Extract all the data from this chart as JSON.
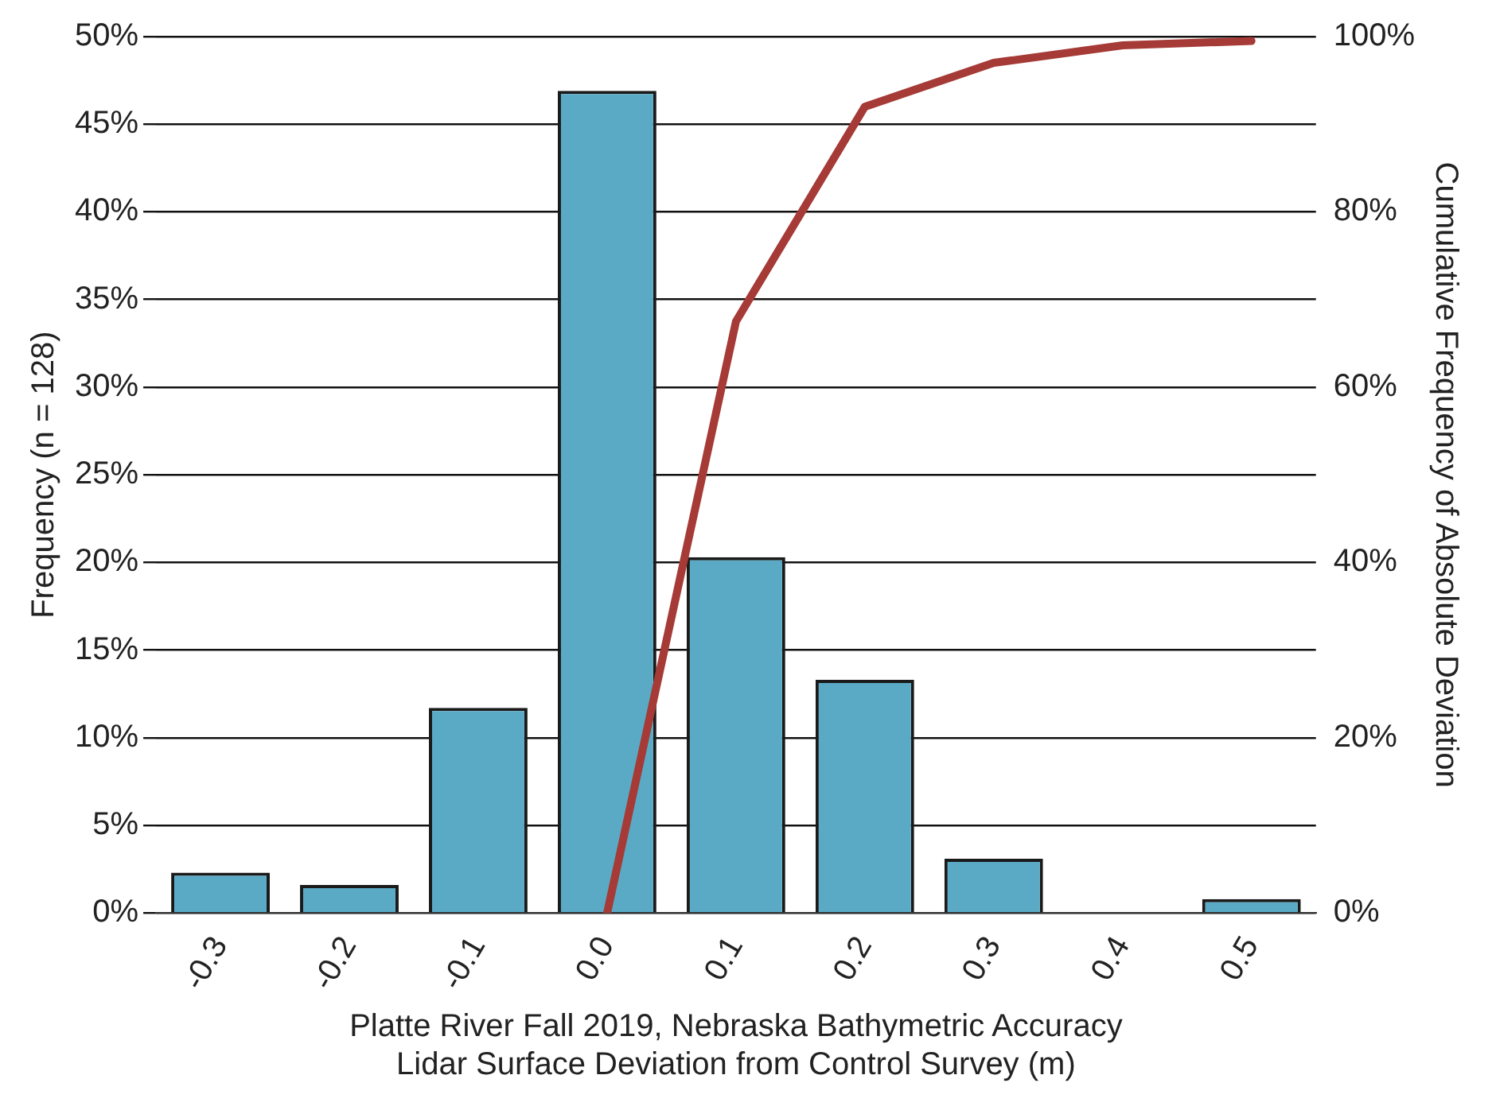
{
  "chart_data": {
    "type": "bar",
    "xlabel": "Platte River Fall 2019, Nebraska Bathymetric Accuracy\nLidar Surface Deviation from Control Survey (m)",
    "ylabel": "Frequency (n = 128)",
    "y2label": "Cumulative Frequency of Absolute Deviation",
    "categories": [
      "-0.3",
      "-0.2",
      "-0.1",
      "0.0",
      "0.1",
      "0.2",
      "0.3",
      "0.4",
      "0.5"
    ],
    "series": [
      {
        "color": "#5aaac6",
        "values": [
          2.3,
          1.6,
          11.7,
          46.9,
          20.3,
          13.3,
          3.1,
          0,
          0.8
        ]
      },
      {
        "type": "line",
        "axis": "y2",
        "color": "#a53a36",
        "marker": "none",
        "line_style": "solid",
        "values": [
          null,
          null,
          null,
          0,
          67.5,
          92,
          97,
          99,
          99.5
        ]
      }
    ],
    "ylim": [
      0,
      50
    ],
    "yticks": [
      {
        "value": 0,
        "label": "0%"
      },
      {
        "value": 5,
        "label": "5%"
      },
      {
        "value": 10,
        "label": "10%"
      },
      {
        "value": 15,
        "label": "15%"
      },
      {
        "value": 20,
        "label": "20%"
      },
      {
        "value": 25,
        "label": "25%"
      },
      {
        "value": 30,
        "label": "30%"
      },
      {
        "value": 35,
        "label": "35%"
      },
      {
        "value": 40,
        "label": "40%"
      },
      {
        "value": 45,
        "label": "45%"
      },
      {
        "value": 50,
        "label": "50%"
      }
    ],
    "y2lim": [
      0,
      100
    ],
    "y2ticks": [
      {
        "value": 0,
        "label": "0%"
      },
      {
        "value": 20,
        "label": "20%"
      },
      {
        "value": 40,
        "label": "40%"
      },
      {
        "value": 60,
        "label": "60%"
      },
      {
        "value": 80,
        "label": "80%"
      },
      {
        "value": 100,
        "label": "100%"
      }
    ],
    "grid": "y",
    "legend": false
  }
}
